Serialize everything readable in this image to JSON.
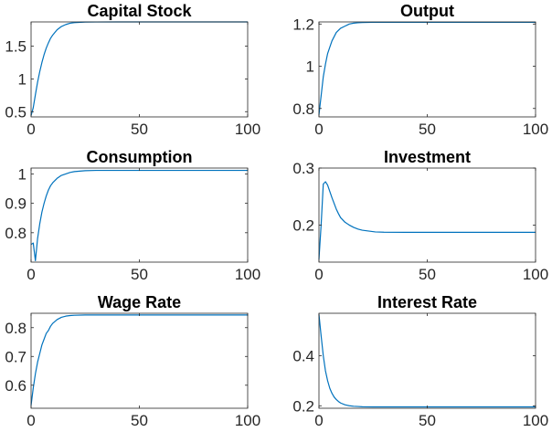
{
  "chart_data": [
    {
      "type": "line",
      "title": "Capital Stock",
      "xlim": [
        0,
        100
      ],
      "ylim": [
        0.42,
        1.87
      ],
      "xticks": [
        "0",
        "50",
        "100"
      ],
      "yticks": [
        [
          "0.5",
          0.5
        ],
        [
          "1",
          1.0
        ],
        [
          "1.5",
          1.5
        ]
      ],
      "series": [
        {
          "x": [
            0,
            1,
            2,
            3,
            4,
            5,
            6,
            7,
            8,
            9,
            10,
            12,
            14,
            16,
            18,
            20,
            25,
            30,
            40,
            60,
            80,
            100
          ],
          "y": [
            0.44,
            0.56,
            0.76,
            0.95,
            1.11,
            1.25,
            1.37,
            1.47,
            1.55,
            1.62,
            1.67,
            1.75,
            1.8,
            1.83,
            1.85,
            1.86,
            1.868,
            1.869,
            1.87,
            1.87,
            1.87,
            1.87
          ]
        }
      ]
    },
    {
      "type": "line",
      "title": "Output",
      "xlim": [
        0,
        100
      ],
      "ylim": [
        0.76,
        1.21
      ],
      "xticks": [
        "0",
        "50",
        "100"
      ],
      "yticks": [
        [
          "0.8",
          0.8
        ],
        [
          "1",
          1.0
        ],
        [
          "1.2",
          1.2
        ]
      ],
      "series": [
        {
          "x": [
            0,
            1,
            2,
            3,
            4,
            5,
            6,
            7,
            8,
            9,
            10,
            12,
            14,
            16,
            18,
            20,
            25,
            30,
            40,
            60,
            80,
            100
          ],
          "y": [
            0.77,
            0.86,
            0.95,
            1.01,
            1.06,
            1.09,
            1.12,
            1.14,
            1.16,
            1.17,
            1.18,
            1.19,
            1.2,
            1.204,
            1.206,
            1.207,
            1.208,
            1.208,
            1.208,
            1.208,
            1.208,
            1.208
          ]
        }
      ]
    },
    {
      "type": "line",
      "title": "Consumption",
      "xlim": [
        0,
        100
      ],
      "ylim": [
        0.7,
        1.02
      ],
      "xticks": [
        "0",
        "50",
        "100"
      ],
      "yticks": [
        [
          "0.8",
          0.8
        ],
        [
          "0.9",
          0.9
        ],
        [
          "1",
          1.0
        ]
      ],
      "series": [
        {
          "x": [
            0,
            1,
            2,
            3,
            4,
            5,
            6,
            7,
            8,
            9,
            10,
            12,
            14,
            16,
            18,
            20,
            25,
            30,
            40,
            60,
            80,
            100
          ],
          "y": [
            0.76,
            0.765,
            0.705,
            0.78,
            0.83,
            0.87,
            0.9,
            0.925,
            0.945,
            0.96,
            0.97,
            0.985,
            0.995,
            1.0,
            1.005,
            1.008,
            1.011,
            1.012,
            1.012,
            1.012,
            1.012,
            1.012
          ]
        }
      ]
    },
    {
      "type": "line",
      "title": "Investment",
      "xlim": [
        0,
        100
      ],
      "ylim": [
        0.135,
        0.3
      ],
      "xticks": [
        "0",
        "50",
        "100"
      ],
      "yticks": [
        [
          "0.2",
          0.2
        ],
        [
          "0.3",
          0.3
        ]
      ],
      "series": [
        {
          "x": [
            0,
            1,
            2,
            3,
            4,
            5,
            6,
            7,
            8,
            9,
            10,
            12,
            14,
            16,
            18,
            20,
            22,
            24,
            26,
            30,
            40,
            60,
            80,
            100
          ],
          "y": [
            0.14,
            0.2,
            0.272,
            0.276,
            0.27,
            0.259,
            0.248,
            0.238,
            0.228,
            0.22,
            0.213,
            0.205,
            0.2,
            0.196,
            0.193,
            0.191,
            0.19,
            0.189,
            0.188,
            0.1875,
            0.1873,
            0.1872,
            0.1872,
            0.1872
          ]
        }
      ]
    },
    {
      "type": "line",
      "title": "Wage Rate",
      "xlim": [
        0,
        100
      ],
      "ylim": [
        0.52,
        0.85
      ],
      "xticks": [
        "0",
        "50",
        "100"
      ],
      "yticks": [
        [
          "0.6",
          0.6
        ],
        [
          "0.7",
          0.7
        ],
        [
          "0.8",
          0.8
        ]
      ],
      "series": [
        {
          "x": [
            0,
            1,
            2,
            3,
            4,
            5,
            6,
            7,
            8,
            9,
            10,
            12,
            14,
            16,
            18,
            20,
            25,
            30,
            40,
            60,
            80,
            100
          ],
          "y": [
            0.53,
            0.59,
            0.64,
            0.68,
            0.71,
            0.74,
            0.76,
            0.78,
            0.79,
            0.805,
            0.815,
            0.828,
            0.836,
            0.84,
            0.842,
            0.843,
            0.844,
            0.844,
            0.844,
            0.844,
            0.844,
            0.844
          ]
        }
      ]
    },
    {
      "type": "line",
      "title": "Interest Rate",
      "xlim": [
        0,
        100
      ],
      "ylim": [
        0.19,
        0.57
      ],
      "xticks": [
        "0",
        "50",
        "100"
      ],
      "yticks": [
        [
          "0.2",
          0.2
        ],
        [
          "0.4",
          0.4
        ]
      ],
      "series": [
        {
          "x": [
            0,
            1,
            2,
            3,
            4,
            5,
            6,
            7,
            8,
            9,
            10,
            12,
            14,
            16,
            18,
            20,
            25,
            30,
            40,
            60,
            80,
            100
          ],
          "y": [
            0.565,
            0.48,
            0.4,
            0.34,
            0.3,
            0.27,
            0.25,
            0.235,
            0.225,
            0.217,
            0.211,
            0.204,
            0.2,
            0.198,
            0.197,
            0.196,
            0.1955,
            0.1955,
            0.1955,
            0.1955,
            0.1955,
            0.1955
          ]
        }
      ]
    }
  ],
  "colors": {
    "line": "#0072bd",
    "axes": "#262626"
  }
}
